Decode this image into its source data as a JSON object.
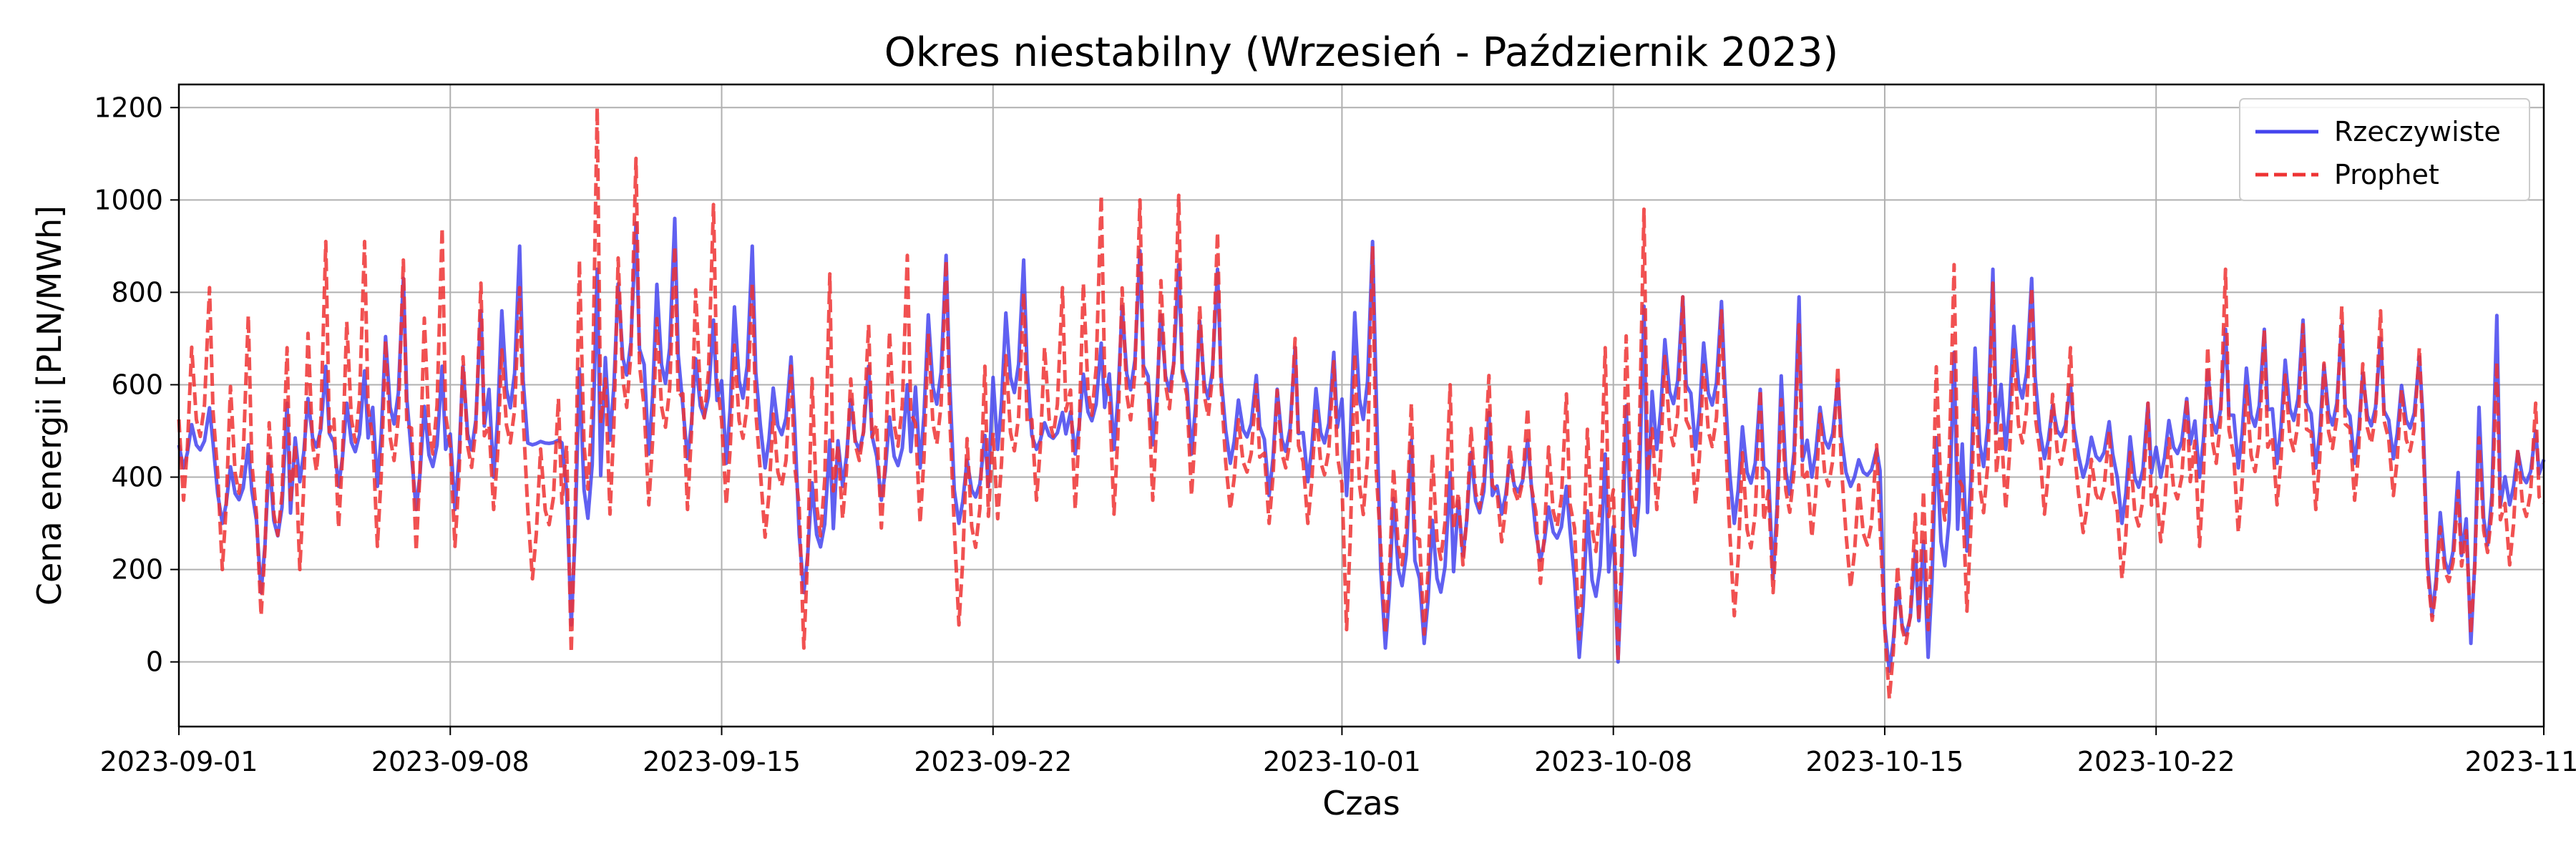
{
  "chart_data": {
    "type": "line",
    "title": "Okres niestabilny (Wrzesień - Październik 2023)",
    "xlabel": "Czas",
    "ylabel": "Cena energii [PLN/MWh]",
    "grid": true,
    "legend_position": "top-right",
    "xlim": [
      "2023-09-01",
      "2023-11-01"
    ],
    "ylim": [
      -140,
      1250
    ],
    "x_ticks": [
      "2023-09-01",
      "2023-09-08",
      "2023-09-15",
      "2023-09-22",
      "2023-10-01",
      "2023-10-08",
      "2023-10-15",
      "2023-10-22",
      "2023-11-01"
    ],
    "y_ticks": [
      0,
      200,
      400,
      600,
      800,
      1000,
      1200
    ],
    "series": [
      {
        "name": "Rzeczywiste",
        "color": "#4444ee",
        "style": "solid",
        "x": [
          "2023-09-01",
          "2023-09-02",
          "2023-09-03",
          "2023-09-04",
          "2023-09-05",
          "2023-09-06",
          "2023-09-07",
          "2023-09-08",
          "2023-09-09",
          "2023-09-10",
          "2023-09-11",
          "2023-09-12",
          "2023-09-13",
          "2023-09-14",
          "2023-09-15",
          "2023-09-16",
          "2023-09-17",
          "2023-09-18",
          "2023-09-19",
          "2023-09-20",
          "2023-09-21",
          "2023-09-22",
          "2023-09-23",
          "2023-09-24",
          "2023-09-25",
          "2023-09-26",
          "2023-09-27",
          "2023-09-28",
          "2023-09-29",
          "2023-09-30",
          "2023-10-01",
          "2023-10-02",
          "2023-10-03",
          "2023-10-04",
          "2023-10-05",
          "2023-10-06",
          "2023-10-07",
          "2023-10-08",
          "2023-10-09",
          "2023-10-10",
          "2023-10-11",
          "2023-10-12",
          "2023-10-13",
          "2023-10-14",
          "2023-10-15",
          "2023-10-16",
          "2023-10-17",
          "2023-10-18",
          "2023-10-19",
          "2023-10-20",
          "2023-10-21",
          "2023-10-22",
          "2023-10-23",
          "2023-10-24",
          "2023-10-25",
          "2023-10-26",
          "2023-10-27",
          "2023-10-28",
          "2023-10-29",
          "2023-10-30",
          "2023-10-31",
          "2023-11-01"
        ],
        "peak": [
          550,
          470,
          560,
          640,
          630,
          830,
          640,
          760,
          900,
          480,
          850,
          950,
          960,
          740,
          900,
          660,
          480,
          640,
          600,
          880,
          490,
          870,
          540,
          690,
          890,
          860,
          850,
          620,
          680,
          670,
          910,
          480,
          410,
          540,
          480,
          380,
          450,
          770,
          790,
          780,
          590,
          790,
          610,
          460,
          240,
          670,
          850,
          830,
          600,
          520,
          560,
          570,
          720,
          720,
          740,
          730,
          700,
          660,
          410,
          750,
          500,
          500
        ],
        "low": [
          420,
          300,
          150,
          390,
          380,
          380,
          330,
          330,
          400,
          470,
          80,
          480,
          450,
          440,
          430,
          420,
          150,
          380,
          350,
          420,
          300,
          460,
          460,
          450,
          460,
          470,
          450,
          430,
          360,
          390,
          360,
          30,
          40,
          230,
          320,
          220,
          10,
          0,
          460,
          460,
          300,
          180,
          400,
          380,
          -20,
          10,
          240,
          460,
          440,
          400,
          300,
          400,
          400,
          420,
          430,
          420,
          430,
          440,
          100,
          40,
          340,
          400
        ]
      },
      {
        "name": "Prophet",
        "color": "#ee3333",
        "style": "dashed",
        "x": [
          "2023-09-01",
          "2023-09-02",
          "2023-09-03",
          "2023-09-04",
          "2023-09-05",
          "2023-09-06",
          "2023-09-07",
          "2023-09-08",
          "2023-09-09",
          "2023-09-10",
          "2023-09-11",
          "2023-09-12",
          "2023-09-13",
          "2023-09-14",
          "2023-09-15",
          "2023-09-16",
          "2023-09-17",
          "2023-09-18",
          "2023-09-19",
          "2023-09-20",
          "2023-09-21",
          "2023-09-22",
          "2023-09-23",
          "2023-09-24",
          "2023-09-25",
          "2023-09-26",
          "2023-09-27",
          "2023-09-28",
          "2023-09-29",
          "2023-09-30",
          "2023-10-01",
          "2023-10-02",
          "2023-10-03",
          "2023-10-04",
          "2023-10-05",
          "2023-10-06",
          "2023-10-07",
          "2023-10-08",
          "2023-10-09",
          "2023-10-10",
          "2023-10-11",
          "2023-10-12",
          "2023-10-13",
          "2023-10-14",
          "2023-10-15",
          "2023-10-16",
          "2023-10-17",
          "2023-10-18",
          "2023-10-19",
          "2023-10-20",
          "2023-10-21",
          "2023-10-22",
          "2023-10-23",
          "2023-10-24",
          "2023-10-25",
          "2023-10-26",
          "2023-10-27",
          "2023-10-28",
          "2023-10-29",
          "2023-10-30",
          "2023-10-31",
          "2023-11-01"
        ],
        "peak": [
          810,
          750,
          680,
          910,
          910,
          870,
          940,
          820,
          810,
          570,
          1200,
          1090,
          900,
          990,
          820,
          640,
          840,
          730,
          880,
          870,
          640,
          800,
          810,
          1010,
          1000,
          1010,
          930,
          600,
          700,
          650,
          900,
          560,
          600,
          620,
          550,
          580,
          680,
          980,
          790,
          760,
          590,
          730,
          640,
          470,
          320,
          860,
          820,
          810,
          680,
          500,
          560,
          570,
          850,
          720,
          730,
          770,
          760,
          680,
          370,
          650,
          560,
          580
        ],
        "low": [
          350,
          200,
          100,
          200,
          290,
          250,
          240,
          250,
          330,
          180,
          20,
          320,
          340,
          330,
          340,
          270,
          30,
          310,
          290,
          300,
          80,
          310,
          350,
          330,
          320,
          350,
          360,
          330,
          300,
          300,
          70,
          60,
          60,
          210,
          260,
          170,
          50,
          0,
          330,
          340,
          100,
          150,
          270,
          160,
          -80,
          70,
          110,
          330,
          320,
          280,
          180,
          260,
          250,
          280,
          340,
          330,
          350,
          360,
          90,
          60,
          210,
          200
        ]
      }
    ]
  }
}
